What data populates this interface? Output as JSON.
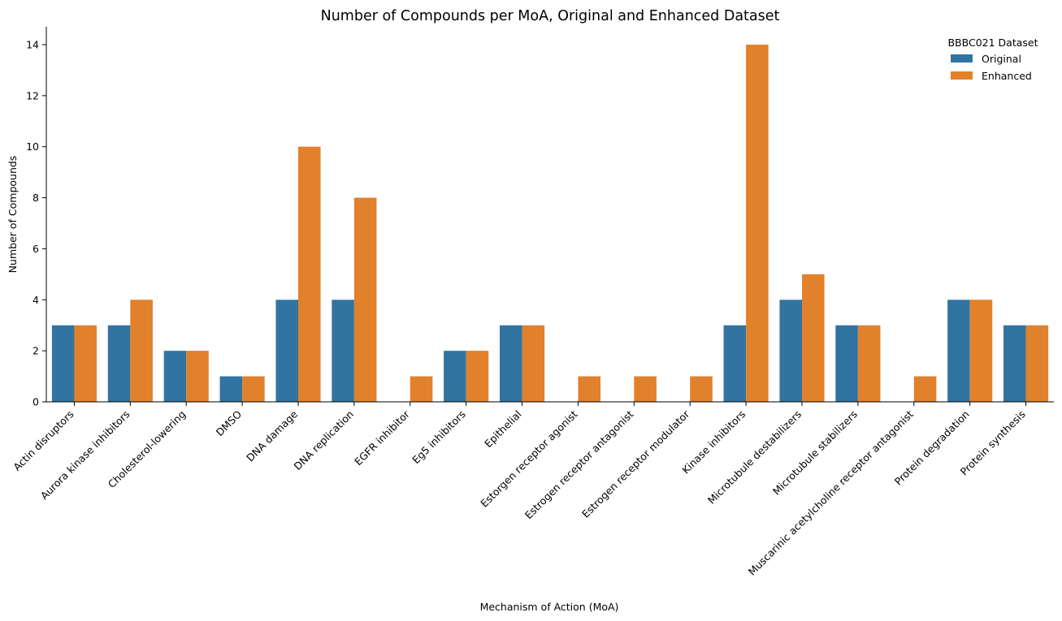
{
  "chart_data": {
    "type": "bar",
    "title": "Number of Compounds per MoA, Original and Enhanced Dataset",
    "xlabel": "Mechanism of Action (MoA)",
    "ylabel": "Number of Compounds",
    "ylim": [
      0,
      14.7
    ],
    "yticks": [
      0,
      2,
      4,
      6,
      8,
      10,
      12,
      14
    ],
    "grid": false,
    "legend": {
      "title": "BBBC021 Dataset",
      "position": "top-right"
    },
    "categories": [
      "Actin disruptors",
      "Aurora kinase inhibitors",
      "Cholesterol-lowering",
      "DMSO",
      "DNA damage",
      "DNA replication",
      "EGFR inhibitor",
      "Eg5 inhibitors",
      "Epithelial",
      "Estorgen receptor agonist",
      "Estrogen receptor antagonist",
      "Estrogen receptor modulator",
      "Kinase inhibitors",
      "Microtubule destabilizers",
      "Microtubule stabilizers",
      "Muscarinic acetylcholine receptor antagonist",
      "Protein degradation",
      "Protein synthesis"
    ],
    "series": [
      {
        "name": "Original",
        "color": "#3274a1",
        "values": [
          3,
          3,
          2,
          1,
          4,
          4,
          0,
          2,
          3,
          0,
          0,
          0,
          3,
          4,
          3,
          0,
          4,
          3
        ]
      },
      {
        "name": "Enhanced",
        "color": "#e1812c",
        "values": [
          3,
          4,
          2,
          1,
          10,
          8,
          1,
          2,
          3,
          1,
          1,
          1,
          14,
          5,
          3,
          1,
          4,
          3
        ]
      }
    ]
  }
}
